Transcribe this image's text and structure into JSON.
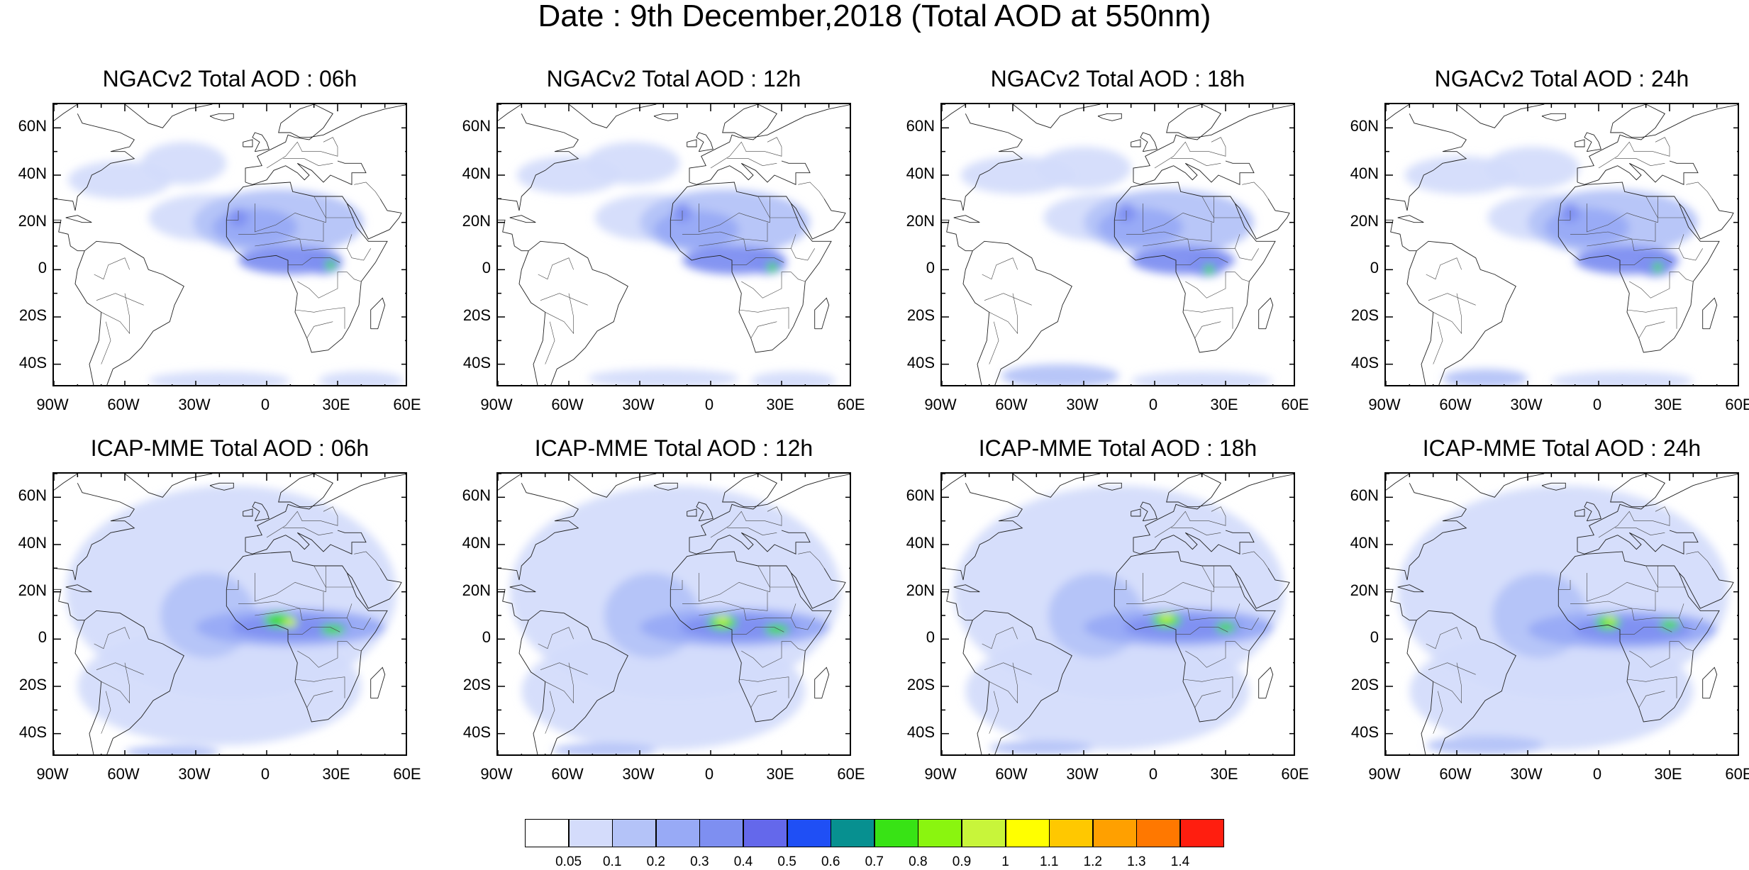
{
  "title": "Date : 9th December,2018 (Total AOD at 550nm)",
  "lat_labels": [
    "60N",
    "40N",
    "20N",
    "0",
    "20S",
    "40S"
  ],
  "lon_labels": [
    "90W",
    "60W",
    "30W",
    "0",
    "30E",
    "60E"
  ],
  "panels": [
    {
      "title": "NGACv2 Total AOD : 06h",
      "model": "NGACv2",
      "hour": "06h"
    },
    {
      "title": "NGACv2 Total AOD : 12h",
      "model": "NGACv2",
      "hour": "12h"
    },
    {
      "title": "NGACv2 Total AOD : 18h",
      "model": "NGACv2",
      "hour": "18h"
    },
    {
      "title": "NGACv2 Total AOD : 24h",
      "model": "NGACv2",
      "hour": "24h"
    },
    {
      "title": "ICAP-MME Total AOD : 06h",
      "model": "ICAP-MME",
      "hour": "06h"
    },
    {
      "title": "ICAP-MME Total AOD : 12h",
      "model": "ICAP-MME",
      "hour": "12h"
    },
    {
      "title": "ICAP-MME Total AOD : 18h",
      "model": "ICAP-MME",
      "hour": "18h"
    },
    {
      "title": "ICAP-MME Total AOD : 24h",
      "model": "ICAP-MME",
      "hour": "24h"
    }
  ],
  "colorbar": {
    "labels": [
      "0.05",
      "0.1",
      "0.2",
      "0.3",
      "0.4",
      "0.5",
      "0.6",
      "0.7",
      "0.8",
      "0.9",
      "1",
      "1.1",
      "1.2",
      "1.3",
      "1.4"
    ],
    "colors": [
      "#ffffff",
      "#d4dcfb",
      "#b4c3f8",
      "#98aaf6",
      "#7e8ff1",
      "#6468eb",
      "#1f4ff5",
      "#079090",
      "#38e315",
      "#8af50f",
      "#c8f53a",
      "#ffff00",
      "#ffc800",
      "#ffa000",
      "#ff7800",
      "#ff1e0f"
    ]
  }
}
